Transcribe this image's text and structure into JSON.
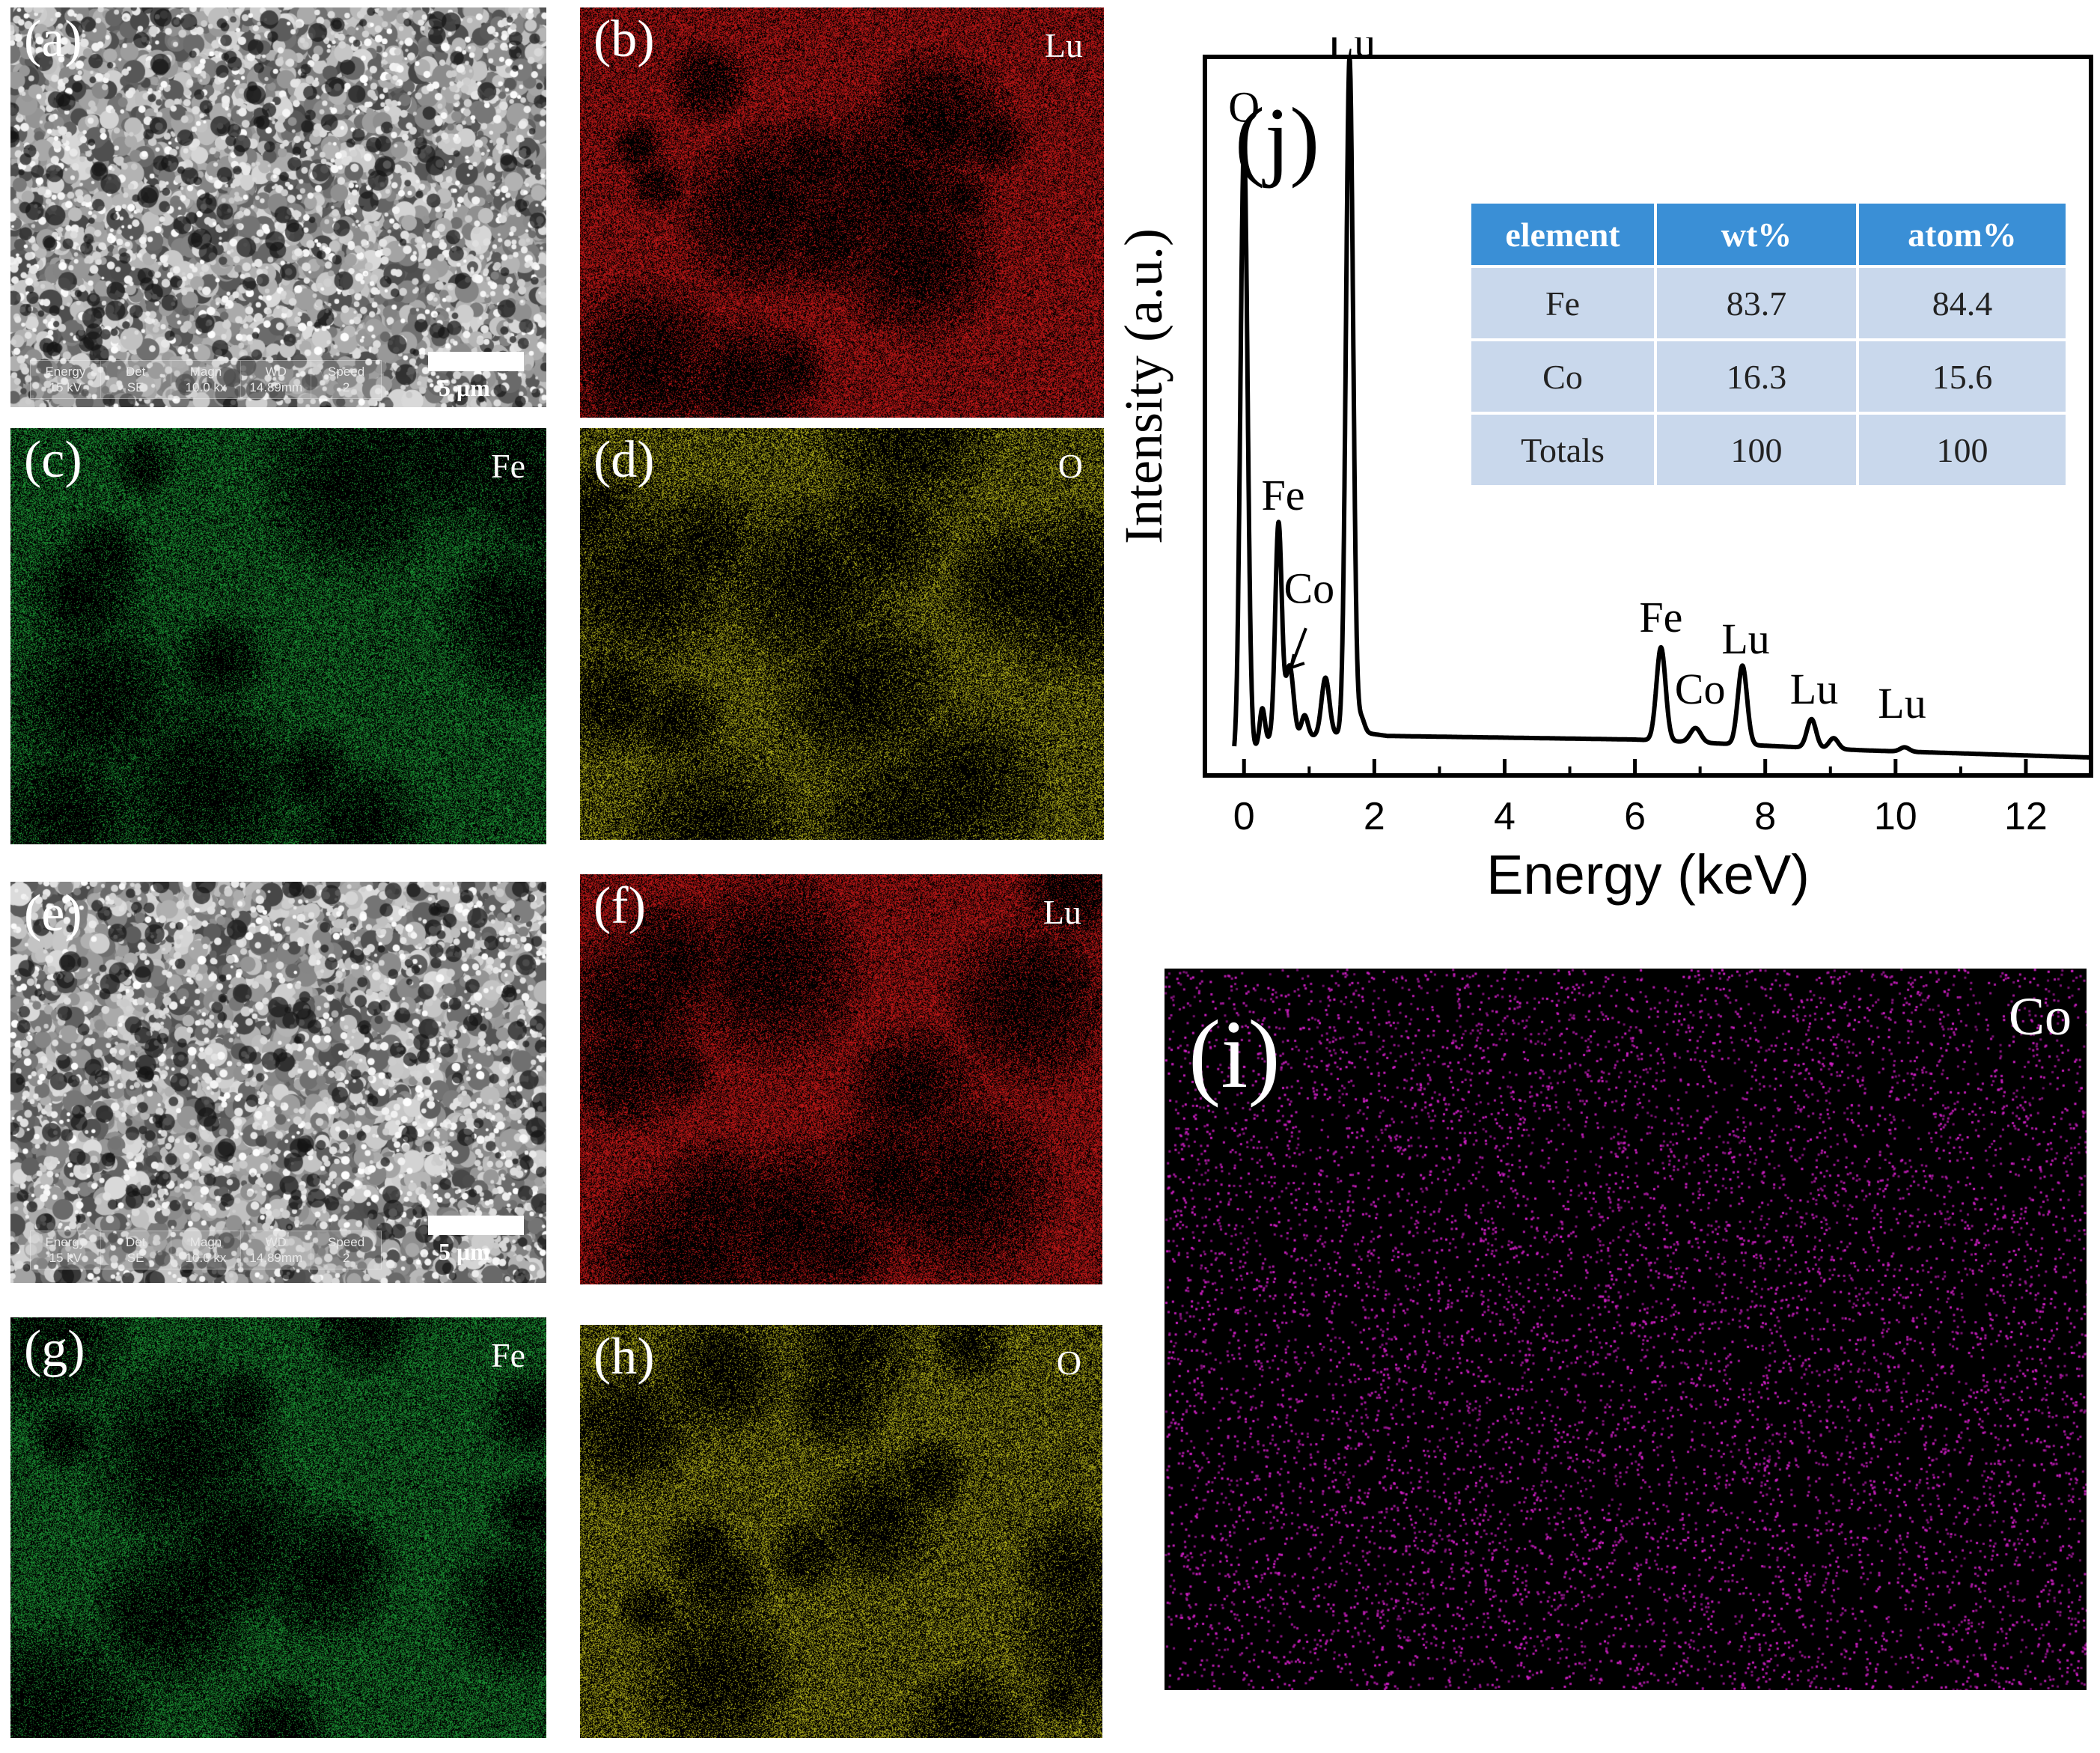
{
  "panels": {
    "a": {
      "label": "(a)",
      "type": "sem"
    },
    "b": {
      "label": "(b)",
      "element": "Lu",
      "color": "#d41a1a"
    },
    "c": {
      "label": "(c)",
      "element": "Fe",
      "color": "#1fa23a"
    },
    "d": {
      "label": "(d)",
      "element": "O",
      "color": "#c6c41e"
    },
    "e": {
      "label": "(e)",
      "type": "sem"
    },
    "f": {
      "label": "(f)",
      "element": "Lu",
      "color": "#d41a1a"
    },
    "g": {
      "label": "(g)",
      "element": "Fe",
      "color": "#1fa23a"
    },
    "h": {
      "label": "(h)",
      "element": "O",
      "color": "#c6c41e"
    },
    "i": {
      "label": "(i)",
      "element": "Co",
      "color": "#d21fc7"
    }
  },
  "sem_info": {
    "headers": [
      "Energy",
      "Det",
      "Magn",
      "WD",
      "Speed"
    ],
    "values": [
      "15 kV",
      "SE",
      "10.0 kx",
      "14.89mm",
      "2"
    ],
    "scale_label": "5 μm"
  },
  "chart_data": {
    "type": "line",
    "panel_label": "(j)",
    "title": "",
    "xlabel": "Energy (keV)",
    "ylabel": "Intensity (a.u.)",
    "xlim": [
      -0.6,
      13
    ],
    "ylim": [
      0,
      1.0
    ],
    "xticks": [
      0,
      2,
      4,
      6,
      8,
      10,
      12
    ],
    "baseline": [
      {
        "x": -0.15,
        "y": 0.02
      },
      {
        "x": 0.4,
        "y": 0.05
      },
      {
        "x": 1.8,
        "y": 0.06
      },
      {
        "x": 2.2,
        "y": 0.055
      },
      {
        "x": 6.0,
        "y": 0.05
      },
      {
        "x": 9.5,
        "y": 0.035
      },
      {
        "x": 13.0,
        "y": 0.025
      }
    ],
    "peaks": [
      {
        "x": 0.0,
        "height": 0.85,
        "width": 0.055
      },
      {
        "x": 0.28,
        "height": 0.05,
        "width": 0.04
      },
      {
        "x": 0.53,
        "height": 0.3,
        "width": 0.05
      },
      {
        "x": 0.7,
        "height": 0.1,
        "width": 0.06
      },
      {
        "x": 0.93,
        "height": 0.03,
        "width": 0.05
      },
      {
        "x": 1.25,
        "height": 0.08,
        "width": 0.06
      },
      {
        "x": 1.62,
        "height": 0.94,
        "width": 0.055
      },
      {
        "x": 1.8,
        "height": 0.02,
        "width": 0.05
      },
      {
        "x": 6.4,
        "height": 0.13,
        "width": 0.07
      },
      {
        "x": 6.93,
        "height": 0.02,
        "width": 0.08
      },
      {
        "x": 7.65,
        "height": 0.11,
        "width": 0.07
      },
      {
        "x": 8.71,
        "height": 0.04,
        "width": 0.07
      },
      {
        "x": 9.05,
        "height": 0.015,
        "width": 0.07
      },
      {
        "x": 10.14,
        "height": 0.006,
        "width": 0.07
      }
    ],
    "annotations": [
      {
        "text": "O",
        "x": 0.0,
        "y": 0.91
      },
      {
        "text": "Fe",
        "x": 0.6,
        "y": 0.37
      },
      {
        "text": "Co",
        "x": 1.0,
        "y": 0.24
      },
      {
        "text": "Lu",
        "x": 1.65,
        "y": 1.0
      },
      {
        "text": "Fe",
        "x": 6.4,
        "y": 0.2
      },
      {
        "text": "Co",
        "x": 7.0,
        "y": 0.1
      },
      {
        "text": "Lu",
        "x": 7.7,
        "y": 0.17
      },
      {
        "text": "Lu",
        "x": 8.75,
        "y": 0.1
      },
      {
        "text": "Lu",
        "x": 10.1,
        "y": 0.08
      }
    ]
  },
  "eds_table": {
    "headers": [
      "element",
      "wt%",
      "atom%"
    ],
    "rows": [
      [
        "Fe",
        "83.7",
        "84.4"
      ],
      [
        "Co",
        "16.3",
        "15.6"
      ],
      [
        "Totals",
        "100",
        "100"
      ]
    ]
  }
}
